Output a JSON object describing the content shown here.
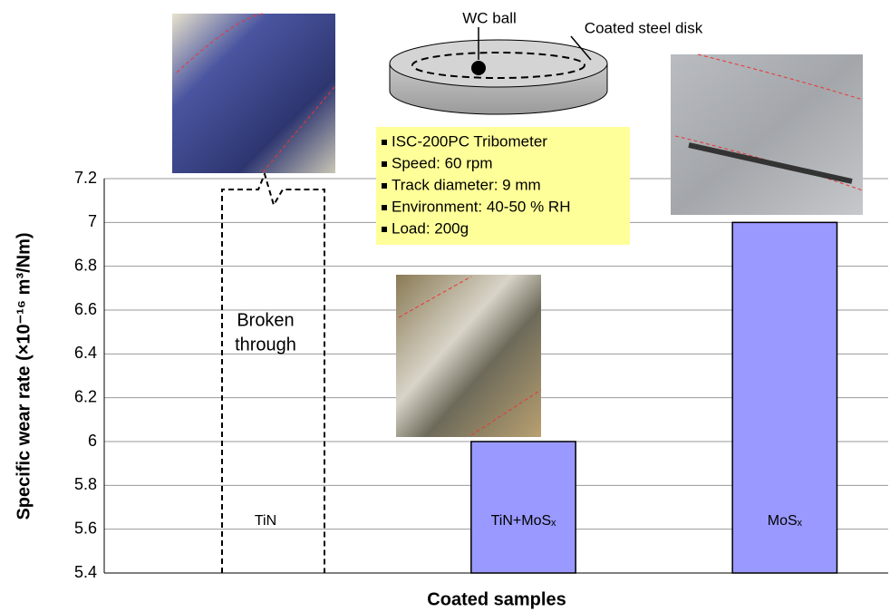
{
  "chart_data": {
    "type": "bar",
    "y_label": "Specific wear rate (×10⁻¹⁶ m³/Nm)",
    "x_label": "Coated samples",
    "categories": [
      "TiN",
      "TiN+MoSₓ",
      "MoSₓ"
    ],
    "values": [
      null,
      6.0,
      7.0
    ],
    "color": "#9999ff",
    "ylim": [
      5.4,
      7.2
    ],
    "yticks": [
      5.4,
      5.6,
      5.8,
      6,
      6.2,
      6.4,
      6.6,
      6.8,
      7,
      7.2
    ],
    "grid": true,
    "broken_label": [
      "Broken",
      "through"
    ],
    "ball_label": "WC ball",
    "disk_label": "Coated steel disk",
    "test_conditions": [
      "ISC-200PC Tribometer",
      "Speed: 60 rpm",
      "Track diameter: 9 mm",
      "Environment: 40-50 % RH",
      "Load: 200g"
    ]
  }
}
